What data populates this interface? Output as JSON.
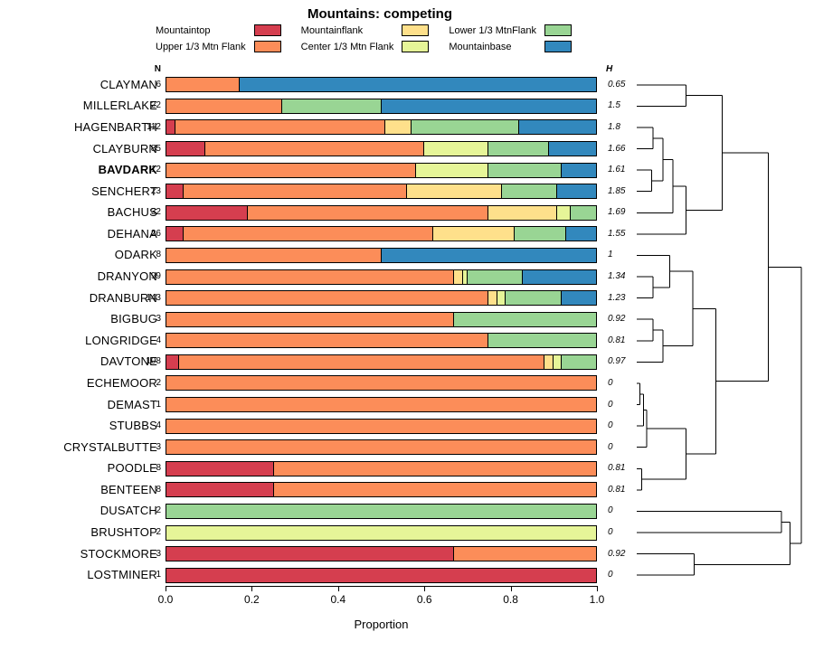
{
  "chart_data": {
    "type": "bar",
    "orientation": "horizontal",
    "stacked": true,
    "title": "Mountains: competing",
    "xlabel": "Proportion",
    "n_header": "N",
    "h_header": "H",
    "xlim": [
      0,
      1
    ],
    "xticks": [
      "0.0",
      "0.2",
      "0.4",
      "0.6",
      "0.8",
      "1.0"
    ],
    "grid": false,
    "legend_position": "top",
    "categories": [
      "Mountaintop",
      "Upper 1/3 Mtn Flank",
      "Mountainflank",
      "Center 1/3 Mtn Flank",
      "Lower 1/3 MtnFlank",
      "Mountainbase"
    ],
    "colors": [
      "#D53E4F",
      "#FC8D59",
      "#FEE08B",
      "#E6F598",
      "#99D594",
      "#3288BD"
    ],
    "rows": [
      {
        "name": "CLAYMAN",
        "n": 6,
        "h": "0.65",
        "bold": false,
        "values": [
          0,
          0.17,
          0,
          0,
          0,
          0.83
        ]
      },
      {
        "name": "MILLERLAKE",
        "n": 22,
        "h": "1.5",
        "bold": false,
        "values": [
          0,
          0.27,
          0,
          0,
          0.23,
          0.5
        ]
      },
      {
        "name": "HAGENBARTH",
        "n": 112,
        "h": "1.8",
        "bold": false,
        "values": [
          0.02,
          0.49,
          0.06,
          0,
          0.25,
          0.18
        ]
      },
      {
        "name": "CLAYBURN",
        "n": 85,
        "h": "1.66",
        "bold": false,
        "values": [
          0.09,
          0.51,
          0,
          0.15,
          0.14,
          0.11
        ]
      },
      {
        "name": "BAVDARK",
        "n": 12,
        "h": "1.61",
        "bold": true,
        "values": [
          0,
          0.58,
          0,
          0.17,
          0.17,
          0.08
        ]
      },
      {
        "name": "SENCHERT",
        "n": 23,
        "h": "1.85",
        "bold": false,
        "values": [
          0.04,
          0.52,
          0.22,
          0,
          0.13,
          0.09
        ]
      },
      {
        "name": "BACHUS",
        "n": 32,
        "h": "1.69",
        "bold": false,
        "values": [
          0.19,
          0.56,
          0.16,
          0.03,
          0.06,
          0
        ]
      },
      {
        "name": "DEHANA",
        "n": 26,
        "h": "1.55",
        "bold": false,
        "values": [
          0.04,
          0.58,
          0.19,
          0,
          0.12,
          0.07
        ]
      },
      {
        "name": "ODARK",
        "n": 8,
        "h": "1",
        "bold": false,
        "values": [
          0,
          0.5,
          0,
          0,
          0,
          0.5
        ]
      },
      {
        "name": "DRANYON",
        "n": 99,
        "h": "1.34",
        "bold": false,
        "values": [
          0,
          0.67,
          0.02,
          0.01,
          0.13,
          0.17
        ]
      },
      {
        "name": "DRANBURN",
        "n": 143,
        "h": "1.23",
        "bold": false,
        "values": [
          0,
          0.75,
          0.02,
          0.02,
          0.13,
          0.08
        ]
      },
      {
        "name": "BIGBUG",
        "n": 3,
        "h": "0.92",
        "bold": false,
        "values": [
          0,
          0.67,
          0,
          0,
          0.33,
          0
        ]
      },
      {
        "name": "LONGRIDGE",
        "n": 4,
        "h": "0.81",
        "bold": false,
        "values": [
          0,
          0.75,
          0,
          0,
          0.25,
          0
        ]
      },
      {
        "name": "DAVTONE",
        "n": 108,
        "h": "0.97",
        "bold": false,
        "values": [
          0.03,
          0.85,
          0.02,
          0.02,
          0.08,
          0
        ]
      },
      {
        "name": "ECHEMOOR",
        "n": 2,
        "h": "0",
        "bold": false,
        "values": [
          0,
          1,
          0,
          0,
          0,
          0
        ]
      },
      {
        "name": "DEMAST",
        "n": 1,
        "h": "0",
        "bold": false,
        "values": [
          0,
          1,
          0,
          0,
          0,
          0
        ]
      },
      {
        "name": "STUBBS",
        "n": 4,
        "h": "0",
        "bold": false,
        "values": [
          0,
          1,
          0,
          0,
          0,
          0
        ]
      },
      {
        "name": "CRYSTALBUTTE",
        "n": 3,
        "h": "0",
        "bold": false,
        "values": [
          0,
          1,
          0,
          0,
          0,
          0
        ]
      },
      {
        "name": "POODLE",
        "n": 8,
        "h": "0.81",
        "bold": false,
        "values": [
          0.25,
          0.75,
          0,
          0,
          0,
          0
        ]
      },
      {
        "name": "BENTEEN",
        "n": 8,
        "h": "0.81",
        "bold": false,
        "values": [
          0.25,
          0.75,
          0,
          0,
          0,
          0
        ]
      },
      {
        "name": "DUSATCH",
        "n": 2,
        "h": "0",
        "bold": false,
        "values": [
          0,
          0,
          0,
          0,
          1,
          0
        ]
      },
      {
        "name": "BRUSHTOP",
        "n": 2,
        "h": "0",
        "bold": false,
        "values": [
          0,
          0,
          0,
          1,
          0,
          0
        ]
      },
      {
        "name": "STOCKMORE",
        "n": 3,
        "h": "0.92",
        "bold": false,
        "values": [
          0.67,
          0.33,
          0,
          0,
          0,
          0
        ]
      },
      {
        "name": "LOSTMINER",
        "n": 1,
        "h": "0",
        "bold": false,
        "values": [
          1,
          0,
          0,
          0,
          0,
          0
        ]
      }
    ],
    "dendrogram": {
      "h": 1.0,
      "children": [
        {
          "h": 0.8,
          "children": [
            {
              "h": 0.52,
              "children": [
                {
                  "h": 0.3,
                  "children": [
                    {
                      "leaf": 0
                    },
                    {
                      "leaf": 1
                    }
                  ]
                },
                {
                  "h": 0.3,
                  "children": [
                    {
                      "h": 0.22,
                      "children": [
                        {
                          "h": 0.16,
                          "children": [
                            {
                              "h": 0.1,
                              "children": [
                                {
                                  "leaf": 2
                                },
                                {
                                  "leaf": 3
                                }
                              ]
                            },
                            {
                              "h": 0.09,
                              "children": [
                                {
                                  "leaf": 4
                                },
                                {
                                  "leaf": 5
                                }
                              ]
                            }
                          ]
                        },
                        {
                          "leaf": 6
                        }
                      ]
                    },
                    {
                      "leaf": 7
                    }
                  ]
                }
              ]
            },
            {
              "h": 0.48,
              "children": [
                {
                  "h": 0.34,
                  "children": [
                    {
                      "h": 0.2,
                      "children": [
                        {
                          "leaf": 8
                        },
                        {
                          "h": 0.1,
                          "children": [
                            {
                              "leaf": 9
                            },
                            {
                              "leaf": 10
                            }
                          ]
                        }
                      ]
                    },
                    {
                      "h": 0.16,
                      "children": [
                        {
                          "h": 0.1,
                          "children": [
                            {
                              "leaf": 11
                            },
                            {
                              "leaf": 12
                            }
                          ]
                        },
                        {
                          "leaf": 13
                        }
                      ]
                    }
                  ]
                },
                {
                  "h": 0.3,
                  "children": [
                    {
                      "h": 0.06,
                      "children": [
                        {
                          "h": 0.04,
                          "children": [
                            {
                              "h": 0.02,
                              "children": [
                                {
                                  "leaf": 14
                                },
                                {
                                  "leaf": 15
                                }
                              ]
                            },
                            {
                              "leaf": 16
                            }
                          ]
                        },
                        {
                          "leaf": 17
                        }
                      ]
                    },
                    {
                      "h": 0.03,
                      "children": [
                        {
                          "leaf": 18
                        },
                        {
                          "leaf": 19
                        }
                      ]
                    }
                  ]
                }
              ]
            }
          ]
        },
        {
          "h": 0.93,
          "children": [
            {
              "h": 0.88,
              "children": [
                {
                  "leaf": 20
                },
                {
                  "leaf": 21
                }
              ]
            },
            {
              "h": 0.35,
              "children": [
                {
                  "leaf": 22
                },
                {
                  "leaf": 23
                }
              ]
            }
          ]
        }
      ]
    }
  }
}
